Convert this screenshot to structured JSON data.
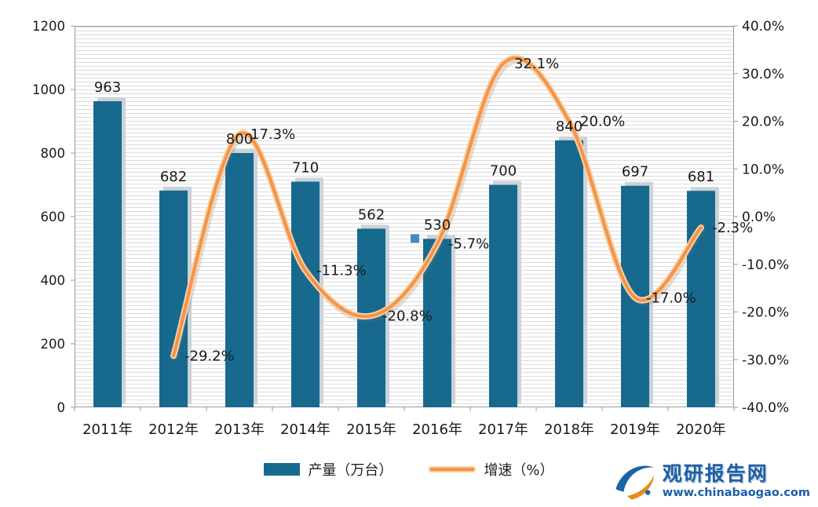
{
  "chart_data": {
    "type": "combo-bar-line",
    "categories": [
      "2011年",
      "2012年",
      "2013年",
      "2014年",
      "2015年",
      "2016年",
      "2017年",
      "2018年",
      "2019年",
      "2020年"
    ],
    "series": [
      {
        "name": "产量（万台）",
        "type": "bar",
        "axis": "left",
        "values": [
          963,
          682,
          800,
          710,
          562,
          530,
          700,
          840,
          697,
          681
        ],
        "labels": [
          "963",
          "682",
          "800",
          "710",
          "562",
          "530",
          "700",
          "840",
          "697",
          "681"
        ],
        "color": "#17698e"
      },
      {
        "name": "增速（%）",
        "type": "line",
        "axis": "right",
        "values": [
          null,
          -29.2,
          17.3,
          -11.3,
          -20.8,
          -5.7,
          32.1,
          20.0,
          -17.0,
          -2.3
        ],
        "labels": [
          null,
          "-29.2%",
          "17.3%",
          "-11.3%",
          "-20.8%",
          "-5.7%",
          "32.1%",
          "20.0%",
          "-17.0%",
          "-2.3%"
        ],
        "color": "#f0944d",
        "halo_color": "#fcd0a0"
      }
    ],
    "left_axis": {
      "min": 0,
      "max": 1200,
      "ticks": [
        "1200",
        "1000",
        "800",
        "600",
        "400",
        "200",
        "0"
      ]
    },
    "right_axis": {
      "min": -40,
      "max": 40,
      "ticks": [
        "40.0%",
        "30.0%",
        "20.0%",
        "10.0%",
        "0.0%",
        "-10.0%",
        "-20.0%",
        "-30.0%",
        "-40.0%"
      ]
    },
    "legend_position": "bottom",
    "grid": "fine-horizontal-stripes"
  },
  "legend": {
    "bar_label": "产量（万台）",
    "line_label": "增速（%）"
  },
  "branding": {
    "name": "观研报告网",
    "url": "www.chinabaogao.com"
  },
  "colors": {
    "bar": "#17698e",
    "bar_shadow": "#ccd3d9",
    "line": "#f0944d",
    "line_halo": "#fcd0a0",
    "text": "#1a1a1a",
    "axis": "#9b9b9b",
    "brand_blue": "#1b5fa8",
    "brand_orange": "#e98a1d",
    "selection_handle": "#4a86c8"
  }
}
